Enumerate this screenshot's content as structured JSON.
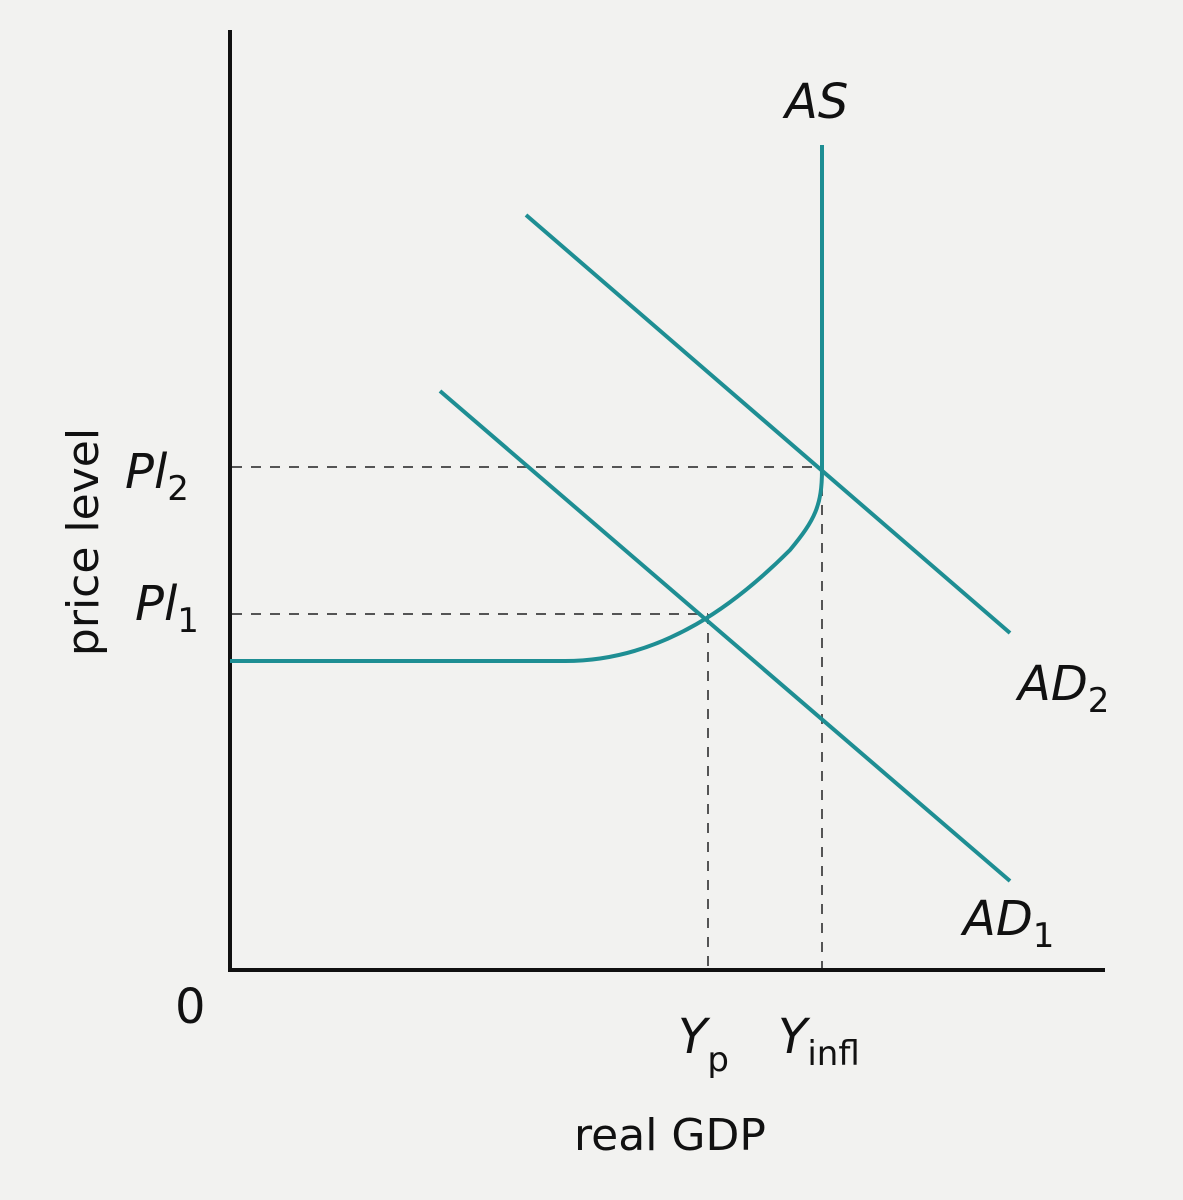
{
  "diagram": {
    "axes": {
      "origin": "0",
      "x_label": "real GDP",
      "y_label": "price level"
    },
    "curves": {
      "as": "AS",
      "ad1": {
        "main": "AD",
        "sub": "1"
      },
      "ad2": {
        "main": "AD",
        "sub": "2"
      }
    },
    "price_levels": [
      {
        "main": "Pl",
        "sub": "1"
      },
      {
        "main": "Pl",
        "sub": "2"
      }
    ],
    "outputs": [
      {
        "main": "Y",
        "sub": "p"
      },
      {
        "main": "Y",
        "sub": "infl"
      }
    ],
    "colors": {
      "curve": "#1e8e93",
      "axis": "#111111",
      "guide": "#555555",
      "background": "#f2f2f0"
    }
  }
}
